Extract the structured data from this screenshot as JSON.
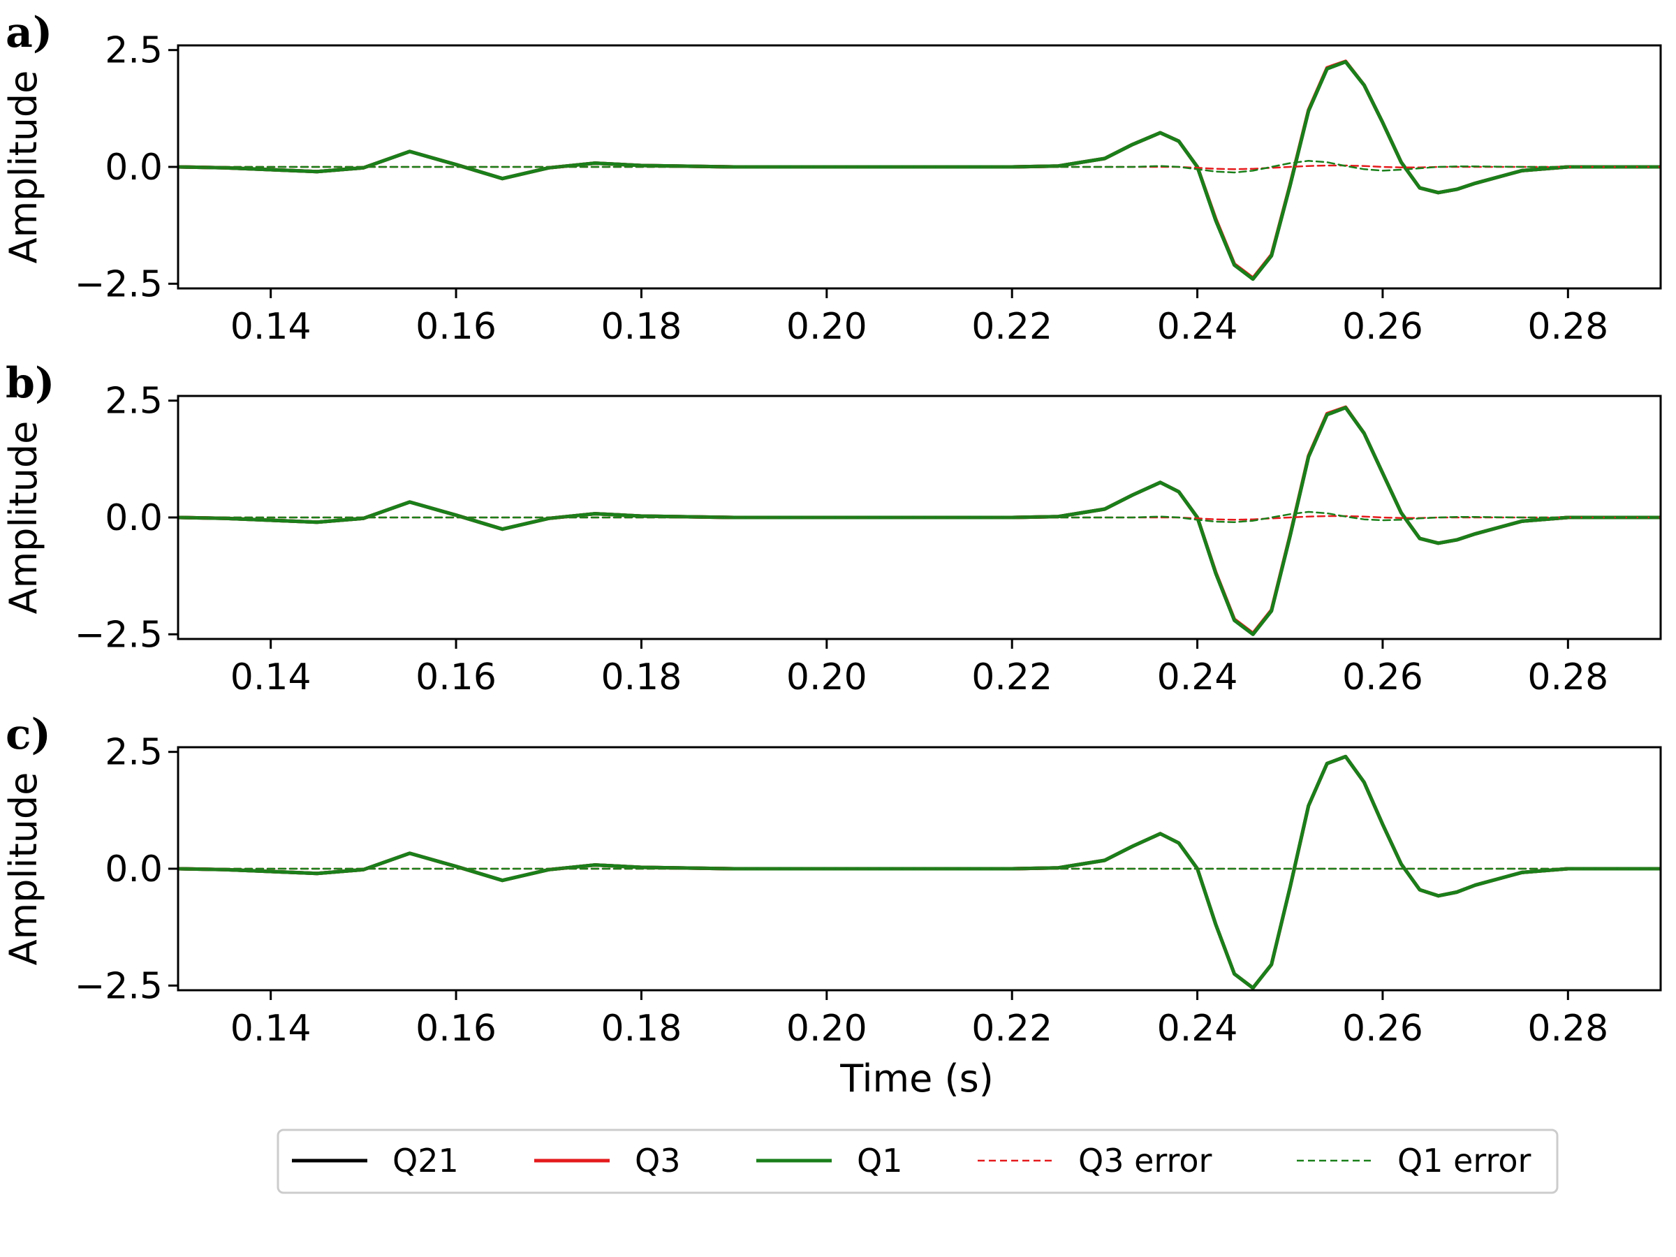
{
  "chart_data": {
    "type": "line",
    "xlabel": "Time (s)",
    "ylabel": "Amplitude",
    "xlim": [
      0.13,
      0.29
    ],
    "ylim": [
      -2.6,
      2.6
    ],
    "x_ticks": [
      "0.14",
      "0.16",
      "0.18",
      "0.20",
      "0.22",
      "0.24",
      "0.26",
      "0.28"
    ],
    "y_ticks": [
      "2.5",
      "0.0",
      "−2.5"
    ],
    "legend_position": "bottom-center",
    "series_styles": [
      {
        "name": "Q21",
        "color": "#000000",
        "dash": "solid"
      },
      {
        "name": "Q3",
        "color": "#e41a1c",
        "dash": "solid"
      },
      {
        "name": "Q1",
        "color": "#1a7f1a",
        "dash": "solid"
      },
      {
        "name": "Q3 error",
        "color": "#e41a1c",
        "dash": "dashed"
      },
      {
        "name": "Q1 error",
        "color": "#1a7f1a",
        "dash": "dashed"
      }
    ],
    "panels": [
      {
        "label": "a)",
        "x": [
          0.13,
          0.135,
          0.14,
          0.145,
          0.15,
          0.155,
          0.16,
          0.165,
          0.17,
          0.175,
          0.18,
          0.19,
          0.2,
          0.21,
          0.22,
          0.225,
          0.23,
          0.233,
          0.236,
          0.238,
          0.24,
          0.242,
          0.244,
          0.246,
          0.248,
          0.25,
          0.252,
          0.254,
          0.256,
          0.258,
          0.26,
          0.262,
          0.264,
          0.266,
          0.268,
          0.27,
          0.275,
          0.28,
          0.285,
          0.29
        ],
        "series": [
          {
            "name": "Q21",
            "values": [
              0,
              -0.02,
              -0.06,
              -0.1,
              -0.02,
              0.33,
              0.05,
              -0.25,
              -0.02,
              0.08,
              0.03,
              0.0,
              0.0,
              0.0,
              0.0,
              0.02,
              0.18,
              0.48,
              0.73,
              0.55,
              0.0,
              -1.15,
              -2.1,
              -2.4,
              -1.9,
              -0.4,
              1.2,
              2.1,
              2.25,
              1.75,
              0.95,
              0.1,
              -0.45,
              -0.55,
              -0.48,
              -0.35,
              -0.08,
              0.0,
              0.0,
              0.0
            ]
          },
          {
            "name": "Q3",
            "values": [
              0,
              -0.02,
              -0.06,
              -0.1,
              -0.02,
              0.33,
              0.05,
              -0.25,
              -0.02,
              0.08,
              0.03,
              0.0,
              0.0,
              0.0,
              0.0,
              0.02,
              0.18,
              0.48,
              0.73,
              0.55,
              0.0,
              -1.12,
              -2.08,
              -2.38,
              -1.88,
              -0.38,
              1.22,
              2.12,
              2.26,
              1.75,
              0.95,
              0.1,
              -0.45,
              -0.55,
              -0.48,
              -0.35,
              -0.08,
              0.0,
              0.0,
              0.0
            ]
          },
          {
            "name": "Q1",
            "values": [
              0,
              -0.02,
              -0.06,
              -0.1,
              -0.02,
              0.33,
              0.05,
              -0.25,
              -0.02,
              0.08,
              0.03,
              0.0,
              0.0,
              0.0,
              0.0,
              0.02,
              0.18,
              0.48,
              0.73,
              0.55,
              0.0,
              -1.15,
              -2.1,
              -2.4,
              -1.9,
              -0.4,
              1.2,
              2.1,
              2.25,
              1.75,
              0.95,
              0.1,
              -0.45,
              -0.55,
              -0.48,
              -0.35,
              -0.08,
              0.0,
              0.0,
              0.0
            ]
          },
          {
            "name": "Q3 error",
            "values": [
              0,
              0,
              0,
              0,
              0,
              0,
              0,
              0,
              0,
              0,
              0,
              0,
              0,
              0,
              0,
              0,
              0,
              0,
              0,
              0,
              -0.02,
              -0.04,
              -0.05,
              -0.04,
              -0.02,
              0.0,
              0.02,
              0.03,
              0.03,
              0.02,
              0.0,
              -0.01,
              -0.01,
              0.0,
              0.0,
              0.0,
              0.0,
              0.0,
              0.0,
              0.0
            ]
          },
          {
            "name": "Q1 error",
            "values": [
              0,
              0,
              0,
              0,
              0,
              0,
              0,
              0,
              0,
              0,
              0,
              0,
              0,
              0,
              0,
              0,
              0,
              0,
              0.02,
              0.0,
              -0.05,
              -0.1,
              -0.12,
              -0.08,
              0.0,
              0.08,
              0.13,
              0.1,
              0.02,
              -0.05,
              -0.08,
              -0.06,
              -0.03,
              0.0,
              0.01,
              0.01,
              0.0,
              0.0,
              0.0,
              0.0
            ]
          }
        ]
      },
      {
        "label": "b)",
        "x": [
          0.13,
          0.135,
          0.14,
          0.145,
          0.15,
          0.155,
          0.16,
          0.165,
          0.17,
          0.175,
          0.18,
          0.19,
          0.2,
          0.21,
          0.22,
          0.225,
          0.23,
          0.233,
          0.236,
          0.238,
          0.24,
          0.242,
          0.244,
          0.246,
          0.248,
          0.25,
          0.252,
          0.254,
          0.256,
          0.258,
          0.26,
          0.262,
          0.264,
          0.266,
          0.268,
          0.27,
          0.275,
          0.28,
          0.285,
          0.29
        ],
        "series": [
          {
            "name": "Q21",
            "values": [
              0,
              -0.02,
              -0.06,
              -0.1,
              -0.02,
              0.33,
              0.05,
              -0.25,
              -0.02,
              0.08,
              0.03,
              0.0,
              0.0,
              0.0,
              0.0,
              0.02,
              0.18,
              0.48,
              0.75,
              0.55,
              0.0,
              -1.2,
              -2.2,
              -2.5,
              -2.0,
              -0.4,
              1.3,
              2.2,
              2.35,
              1.8,
              0.95,
              0.1,
              -0.45,
              -0.55,
              -0.48,
              -0.35,
              -0.08,
              0.0,
              0.0,
              0.0
            ]
          },
          {
            "name": "Q3",
            "values": [
              0,
              -0.02,
              -0.06,
              -0.1,
              -0.02,
              0.33,
              0.05,
              -0.25,
              -0.02,
              0.08,
              0.03,
              0.0,
              0.0,
              0.0,
              0.0,
              0.02,
              0.18,
              0.48,
              0.75,
              0.55,
              0.0,
              -1.18,
              -2.18,
              -2.48,
              -1.98,
              -0.38,
              1.32,
              2.22,
              2.36,
              1.8,
              0.95,
              0.1,
              -0.45,
              -0.55,
              -0.48,
              -0.35,
              -0.08,
              0.0,
              0.0,
              0.0
            ]
          },
          {
            "name": "Q1",
            "values": [
              0,
              -0.02,
              -0.06,
              -0.1,
              -0.02,
              0.33,
              0.05,
              -0.25,
              -0.02,
              0.08,
              0.03,
              0.0,
              0.0,
              0.0,
              0.0,
              0.02,
              0.18,
              0.48,
              0.75,
              0.55,
              0.0,
              -1.2,
              -2.2,
              -2.5,
              -2.0,
              -0.4,
              1.3,
              2.2,
              2.35,
              1.8,
              0.95,
              0.1,
              -0.45,
              -0.55,
              -0.48,
              -0.35,
              -0.08,
              0.0,
              0.0,
              0.0
            ]
          },
          {
            "name": "Q3 error",
            "values": [
              0,
              0,
              0,
              0,
              0,
              0,
              0,
              0,
              0,
              0,
              0,
              0,
              0,
              0,
              0,
              0,
              0,
              0,
              0,
              0,
              -0.02,
              -0.04,
              -0.05,
              -0.04,
              -0.02,
              0.0,
              0.02,
              0.03,
              0.03,
              0.02,
              0.0,
              -0.01,
              -0.01,
              0.0,
              0.0,
              0.0,
              0.0,
              0.0,
              0.0,
              0.0
            ]
          },
          {
            "name": "Q1 error",
            "values": [
              0,
              0,
              0,
              0,
              0,
              0,
              0,
              0,
              0,
              0,
              0,
              0,
              0,
              0,
              0,
              0,
              0,
              0,
              0.02,
              0.0,
              -0.05,
              -0.09,
              -0.1,
              -0.07,
              0.0,
              0.07,
              0.12,
              0.09,
              0.02,
              -0.04,
              -0.06,
              -0.05,
              -0.02,
              0.0,
              0.01,
              0.01,
              0.0,
              0.0,
              0.0,
              0.0
            ]
          }
        ]
      },
      {
        "label": "c)",
        "x": [
          0.13,
          0.135,
          0.14,
          0.145,
          0.15,
          0.155,
          0.16,
          0.165,
          0.17,
          0.175,
          0.18,
          0.19,
          0.2,
          0.21,
          0.22,
          0.225,
          0.23,
          0.233,
          0.236,
          0.238,
          0.24,
          0.242,
          0.244,
          0.246,
          0.248,
          0.25,
          0.252,
          0.254,
          0.256,
          0.258,
          0.26,
          0.262,
          0.264,
          0.266,
          0.268,
          0.27,
          0.275,
          0.28,
          0.285,
          0.29
        ],
        "series": [
          {
            "name": "Q21",
            "values": [
              0,
              -0.02,
              -0.06,
              -0.1,
              -0.02,
              0.33,
              0.05,
              -0.25,
              -0.02,
              0.08,
              0.03,
              0.0,
              0.0,
              0.0,
              0.0,
              0.02,
              0.18,
              0.48,
              0.75,
              0.55,
              0.0,
              -1.2,
              -2.25,
              -2.55,
              -2.05,
              -0.4,
              1.35,
              2.25,
              2.4,
              1.85,
              0.95,
              0.1,
              -0.45,
              -0.58,
              -0.5,
              -0.35,
              -0.08,
              0.0,
              0.0,
              0.0
            ]
          },
          {
            "name": "Q3",
            "values": [
              0,
              -0.02,
              -0.06,
              -0.1,
              -0.02,
              0.33,
              0.05,
              -0.25,
              -0.02,
              0.08,
              0.03,
              0.0,
              0.0,
              0.0,
              0.0,
              0.02,
              0.18,
              0.48,
              0.75,
              0.55,
              0.0,
              -1.2,
              -2.25,
              -2.55,
              -2.05,
              -0.4,
              1.35,
              2.25,
              2.4,
              1.85,
              0.95,
              0.1,
              -0.45,
              -0.58,
              -0.5,
              -0.35,
              -0.08,
              0.0,
              0.0,
              0.0
            ]
          },
          {
            "name": "Q1",
            "values": [
              0,
              -0.02,
              -0.06,
              -0.1,
              -0.02,
              0.33,
              0.05,
              -0.25,
              -0.02,
              0.08,
              0.03,
              0.0,
              0.0,
              0.0,
              0.0,
              0.02,
              0.18,
              0.48,
              0.75,
              0.55,
              0.0,
              -1.2,
              -2.25,
              -2.55,
              -2.05,
              -0.4,
              1.35,
              2.25,
              2.4,
              1.85,
              0.95,
              0.1,
              -0.45,
              -0.58,
              -0.5,
              -0.35,
              -0.08,
              0.0,
              0.0,
              0.0
            ]
          },
          {
            "name": "Q3 error",
            "values": [
              0,
              0,
              0,
              0,
              0,
              0,
              0,
              0,
              0,
              0,
              0,
              0,
              0,
              0,
              0,
              0,
              0,
              0,
              0,
              0,
              0,
              0,
              0,
              0,
              0,
              0,
              0,
              0,
              0,
              0,
              0,
              0,
              0,
              0,
              0,
              0,
              0,
              0,
              0,
              0
            ]
          },
          {
            "name": "Q1 error",
            "values": [
              0,
              0,
              0,
              0,
              0,
              0,
              0,
              0,
              0,
              0,
              0,
              0,
              0,
              0,
              0,
              0,
              0,
              0,
              0,
              0,
              0,
              0,
              0,
              0,
              0,
              0,
              0,
              0,
              0,
              0,
              0,
              0,
              0,
              0,
              0,
              0,
              0,
              0,
              0,
              0
            ]
          }
        ]
      }
    ]
  }
}
